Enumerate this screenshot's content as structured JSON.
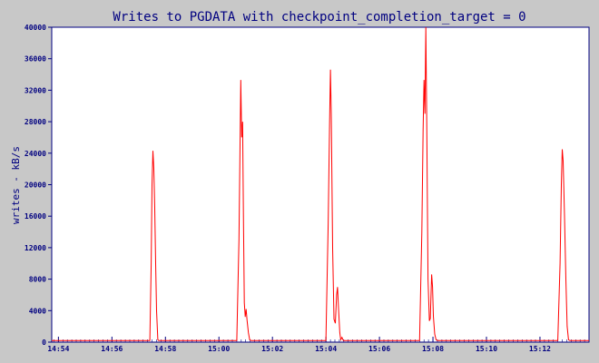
{
  "chart_data": {
    "type": "line",
    "title": "Writes to PGDATA with checkpoint_completion_target = 0",
    "xlabel": "",
    "ylabel": "writes - kB/s",
    "ylim": [
      0,
      40000
    ],
    "yticks": [
      0,
      4000,
      8000,
      12000,
      16000,
      20000,
      24000,
      28000,
      32000,
      36000,
      40000
    ],
    "xlim": [
      "14:53:45",
      "15:13:50"
    ],
    "xticks": [
      "14:54",
      "14:56",
      "14:58",
      "15:00",
      "15:02",
      "15:04",
      "15:06",
      "15:08",
      "15:10",
      "15:12"
    ],
    "grid": false,
    "colors": {
      "line": "#ff0000",
      "axis": "#000080",
      "plot_bg": "#ffffff",
      "page_bg": "#c8c8c8"
    },
    "series": [
      {
        "name": "",
        "points": [
          [
            "14:53:45",
            200
          ],
          [
            "14:57:25",
            200
          ],
          [
            "14:57:28",
            10000
          ],
          [
            "14:57:30",
            20000
          ],
          [
            "14:57:32",
            24300
          ],
          [
            "14:57:34",
            22000
          ],
          [
            "14:57:36",
            17000
          ],
          [
            "14:57:38",
            10000
          ],
          [
            "14:57:40",
            4000
          ],
          [
            "14:57:43",
            300
          ],
          [
            "14:57:45",
            200
          ],
          [
            "15:00:40",
            200
          ],
          [
            "15:00:45",
            13000
          ],
          [
            "15:00:49",
            33300
          ],
          [
            "15:00:51",
            26000
          ],
          [
            "15:00:53",
            28000
          ],
          [
            "15:00:55",
            15000
          ],
          [
            "15:00:57",
            5000
          ],
          [
            "15:00:59",
            3200
          ],
          [
            "15:01:01",
            4200
          ],
          [
            "15:01:03",
            2800
          ],
          [
            "15:01:06",
            1200
          ],
          [
            "15:01:09",
            300
          ],
          [
            "15:01:12",
            200
          ],
          [
            "15:04:00",
            200
          ],
          [
            "15:04:05",
            15000
          ],
          [
            "15:04:08",
            27500
          ],
          [
            "15:04:10",
            34600
          ],
          [
            "15:04:12",
            29000
          ],
          [
            "15:04:15",
            12000
          ],
          [
            "15:04:18",
            2900
          ],
          [
            "15:04:21",
            2400
          ],
          [
            "15:04:24",
            6000
          ],
          [
            "15:04:26",
            7000
          ],
          [
            "15:04:28",
            4500
          ],
          [
            "15:04:31",
            1200
          ],
          [
            "15:04:33",
            300
          ],
          [
            "15:04:36",
            600
          ],
          [
            "15:04:39",
            200
          ],
          [
            "15:07:30",
            200
          ],
          [
            "15:07:35",
            14000
          ],
          [
            "15:07:38",
            27000
          ],
          [
            "15:07:40",
            33300
          ],
          [
            "15:07:42",
            29000
          ],
          [
            "15:07:44",
            40000
          ],
          [
            "15:07:46",
            28000
          ],
          [
            "15:07:49",
            8000
          ],
          [
            "15:07:52",
            2700
          ],
          [
            "15:07:54",
            3000
          ],
          [
            "15:07:57",
            8600
          ],
          [
            "15:07:59",
            7000
          ],
          [
            "15:08:01",
            3300
          ],
          [
            "15:08:04",
            1000
          ],
          [
            "15:08:07",
            300
          ],
          [
            "15:08:10",
            200
          ],
          [
            "15:12:40",
            200
          ],
          [
            "15:12:45",
            10000
          ],
          [
            "15:12:48",
            20000
          ],
          [
            "15:12:50",
            24500
          ],
          [
            "15:12:52",
            23000
          ],
          [
            "15:12:55",
            16000
          ],
          [
            "15:12:58",
            8000
          ],
          [
            "15:13:01",
            2000
          ],
          [
            "15:13:04",
            300
          ],
          [
            "15:13:07",
            200
          ],
          [
            "15:13:50",
            200
          ]
        ]
      }
    ]
  }
}
